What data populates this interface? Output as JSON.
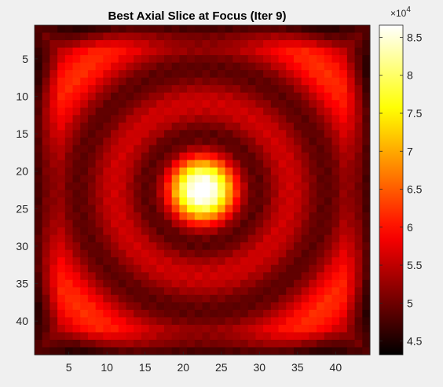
{
  "chart_data": {
    "type": "heatmap",
    "title": "Best Axial Slice at Focus (Iter 9)",
    "xlabel": "",
    "ylabel": "",
    "rows": 44,
    "cols": 44,
    "x_ticks": [
      5,
      10,
      15,
      20,
      25,
      30,
      35,
      40
    ],
    "y_ticks": [
      5,
      10,
      15,
      20,
      25,
      30,
      35,
      40
    ],
    "x_tick_labels": [
      "5",
      "10",
      "15",
      "20",
      "25",
      "30",
      "35",
      "40"
    ],
    "y_tick_labels": [
      "5",
      "10",
      "15",
      "20",
      "25",
      "30",
      "35",
      "40"
    ],
    "colormap": "hot",
    "colorbar": {
      "min": 43200,
      "max": 86600,
      "ticks": [
        45000,
        50000,
        55000,
        60000,
        65000,
        70000,
        75000,
        80000,
        85000
      ],
      "tick_labels": [
        "4.5",
        "5",
        "5.5",
        "6",
        "6.5",
        "7",
        "7.5",
        "8",
        "8.5"
      ],
      "exponent_label": "×10",
      "exponent_power": "4"
    },
    "peak": {
      "row": 22,
      "col": 22,
      "value": 86600
    },
    "approx_levels": {
      "center_peak": 86600,
      "center_sigma": 2.8,
      "dark_ring_value": 49500,
      "dark_ring_radius": 7,
      "mid_ring_value": 56500,
      "mid_ring_radius": 11.5,
      "outer_dark_value": 51500,
      "outer_dark_radius": 16,
      "corner_lobe_value": 61500,
      "corner_lobe_radius": 24,
      "edge_min": 43200
    }
  }
}
